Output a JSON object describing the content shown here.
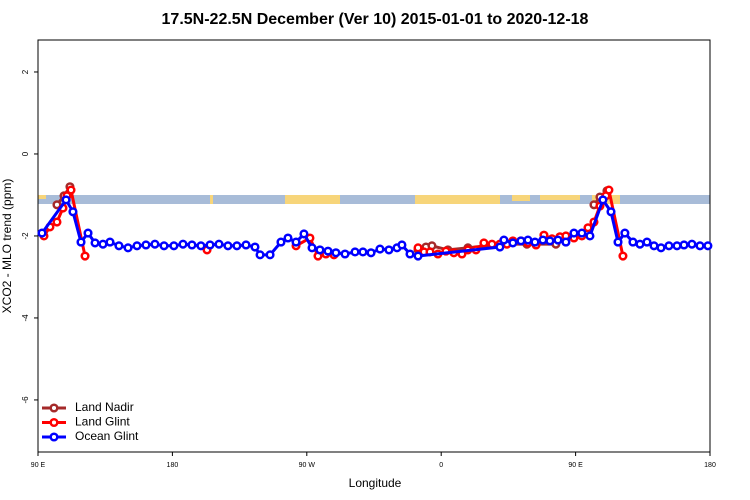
{
  "chart_data": {
    "type": "line",
    "title": "17.5N-22.5N December (Ver 10)   2015-01-01 to 2020-12-18",
    "xlabel": "Longitude",
    "ylabel": "XCO2 - MLO trend (ppm)",
    "xlim": [
      90,
      540
    ],
    "ylim": [
      -7.27,
      2.78
    ],
    "xticks": [
      {
        "value": 90,
        "label": "90 E"
      },
      {
        "value": 180,
        "label": "180"
      },
      {
        "value": 270,
        "label": "90 W"
      },
      {
        "value": 360,
        "label": "0"
      },
      {
        "value": 450,
        "label": "90 E"
      },
      {
        "value": 540,
        "label": "180"
      }
    ],
    "yticks": [
      2,
      0,
      -2,
      -4,
      -6
    ],
    "legend": "bottom-left",
    "series": [
      {
        "name": "Land Nadir",
        "color": "#a52a2a",
        "x": [
          102.7,
          107.4,
          111.4,
          null,
          344.5,
          349.8,
          353.8,
          364.5,
          377.9,
          399.3,
          417.4,
          436.8,
          null,
          462.3,
          466.3,
          471
        ],
        "values": [
          -1.24,
          -1.02,
          -0.8,
          null,
          -2.34,
          -2.27,
          -2.24,
          -2.34,
          -2.29,
          -2.2,
          -2.2,
          -2.2,
          null,
          -1.24,
          -1.05,
          -0.9
        ]
      },
      {
        "name": "Land Glint",
        "color": "#ff0000",
        "x": [
          94,
          98,
          102.7,
          106.7,
          109.4,
          112.1,
          121.5,
          null,
          203.2,
          null,
          262.8,
          272.1,
          277.5,
          282.8,
          288.2,
          null,
          344.5,
          348.5,
          352.5,
          357.8,
          363.2,
          368.5,
          373.9,
          377.9,
          383.3,
          388.6,
          394,
          399.3,
          404,
          408,
          413.4,
          418.1,
          423.5,
          428.8,
          434.2,
          439.5,
          443.5,
          448.9,
          454.2,
          458.3,
          462.3,
          466.3,
          470.3,
          472.3,
          481.7
        ],
        "values": [
          -2.0,
          -1.78,
          -1.66,
          -1.32,
          -1.02,
          -0.88,
          -2.49,
          null,
          -2.34,
          null,
          -2.24,
          -2.05,
          -2.49,
          -2.44,
          -2.46,
          null,
          -2.29,
          -2.39,
          -2.39,
          -2.44,
          -2.37,
          -2.41,
          -2.44,
          -2.34,
          -2.34,
          -2.17,
          -2.2,
          -2.2,
          -2.2,
          -2.12,
          -2.12,
          -2.17,
          -2.22,
          -1.98,
          -2.07,
          -2.02,
          -2.0,
          -2.05,
          -2.0,
          -1.8,
          -1.66,
          -1.27,
          -1.02,
          -0.88,
          -2.49
        ]
      },
      {
        "name": "Ocean Glint",
        "color": "#0000ff",
        "x": [
          92.7,
          108.8,
          113.4,
          118.8,
          123.5,
          128.2,
          133.5,
          138.2,
          144.2,
          150.3,
          156.3,
          162.3,
          168.3,
          174.4,
          181,
          187.1,
          193.1,
          199.1,
          205.2,
          211.2,
          217.2,
          223.2,
          229.3,
          235.3,
          238.7,
          245.4,
          252.7,
          257.4,
          262.8,
          268.1,
          273.5,
          278.8,
          284.2,
          289.5,
          295.6,
          302.3,
          307.6,
          313,
          319,
          325,
          330.4,
          333.7,
          339.1,
          344.5,
          399.3,
          402,
          408,
          413.4,
          418.1,
          422.8,
          428.1,
          432.8,
          438.2,
          443.5,
          448.9,
          454.2,
          459.6,
          468.3,
          473.7,
          478.4,
          483,
          488.4,
          493.1,
          497.8,
          502.5,
          507.2,
          512.5,
          517.9,
          522.6,
          527.9,
          533.3,
          538.6
        ],
        "values": [
          -1.93,
          -1.12,
          -1.41,
          -2.15,
          -1.93,
          -2.17,
          -2.2,
          -2.15,
          -2.24,
          -2.29,
          -2.24,
          -2.22,
          -2.2,
          -2.24,
          -2.24,
          -2.2,
          -2.22,
          -2.24,
          -2.22,
          -2.2,
          -2.24,
          -2.24,
          -2.22,
          -2.27,
          -2.46,
          -2.46,
          -2.15,
          -2.05,
          -2.15,
          -1.95,
          -2.29,
          -2.34,
          -2.37,
          -2.41,
          -2.44,
          -2.39,
          -2.39,
          -2.41,
          -2.32,
          -2.34,
          -2.29,
          -2.22,
          -2.44,
          -2.49,
          -2.27,
          -2.1,
          -2.17,
          -2.12,
          -2.1,
          -2.15,
          -2.1,
          -2.12,
          -2.1,
          -2.15,
          -1.93,
          -1.93,
          -2.0,
          -1.12,
          -1.41,
          -2.15,
          -1.93,
          -2.15,
          -2.2,
          -2.15,
          -2.24,
          -2.29,
          -2.24,
          -2.24,
          -2.22,
          -2.2,
          -2.24,
          -2.24
        ]
      }
    ]
  }
}
